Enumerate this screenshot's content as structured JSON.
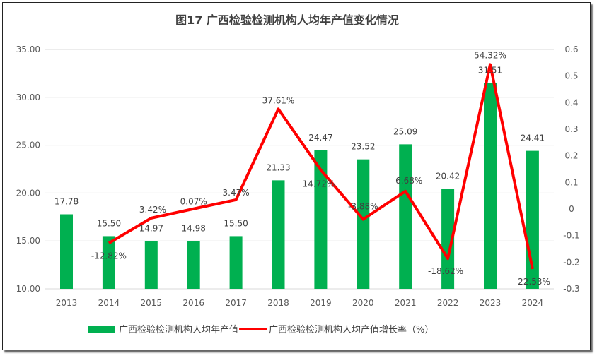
{
  "chart_data": {
    "type": "bar+line",
    "title": "图17   广西检验检测机构人均年产值变化情况",
    "categories": [
      "2013",
      "2014",
      "2015",
      "2016",
      "2017",
      "2018",
      "2019",
      "2020",
      "2021",
      "2022",
      "2023",
      "2024"
    ],
    "series": [
      {
        "name": "广西检验检测机构人均年产值",
        "type": "bar",
        "axis": "left",
        "color": "#00B050",
        "values": [
          17.78,
          15.5,
          14.97,
          14.98,
          15.5,
          21.33,
          24.47,
          23.52,
          25.09,
          20.42,
          31.51,
          24.41
        ],
        "labels": [
          "17.78",
          "15.50",
          "14.97",
          "14.98",
          "15.50",
          "21.33",
          "24.47",
          "23.52",
          "25.09",
          "20.42",
          "31.51",
          "24.41"
        ]
      },
      {
        "name": "广西检验检测机构人均产值增长率（%）",
        "type": "line",
        "axis": "right",
        "color": "#FF0000",
        "values": [
          null,
          -0.1282,
          -0.0342,
          0.0007,
          0.0347,
          0.3761,
          0.1472,
          -0.0388,
          0.0668,
          -0.1862,
          0.5432,
          -0.2253
        ],
        "labels": [
          "",
          "-12.82%",
          "-3.42%",
          "0.07%",
          "3.47%",
          "37.61%",
          "14.72%",
          "-3.88%",
          "6.68%",
          "-18.62%",
          "54.32%",
          "-22.53%"
        ]
      }
    ],
    "left_axis": {
      "min": 10,
      "max": 35,
      "ticks": [
        "10.00",
        "15.00",
        "20.00",
        "25.00",
        "30.00",
        "35.00"
      ]
    },
    "right_axis": {
      "min": -0.3,
      "max": 0.6,
      "ticks": [
        "-0.3",
        "-0.2",
        "-0.1",
        "0",
        "0.1",
        "0.2",
        "0.3",
        "0.4",
        "0.5",
        "0.6"
      ]
    },
    "grid": true,
    "legend": "bottom"
  }
}
